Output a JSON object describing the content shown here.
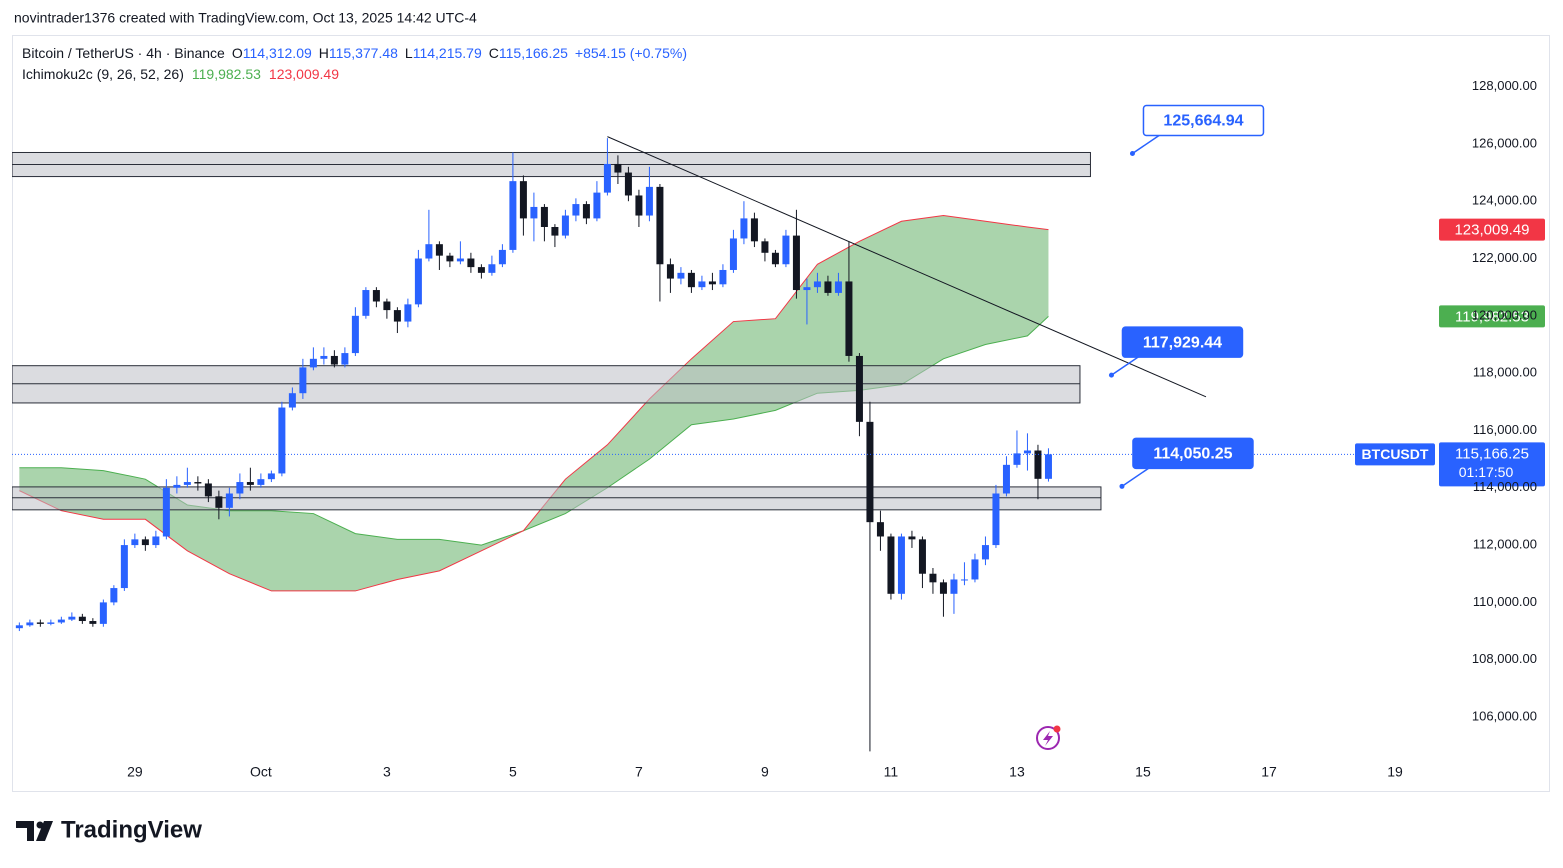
{
  "top_caption": "novintrader1376 created with TradingView.com, Oct 13, 2025 14:42 UTC-4",
  "brand": "TradingView",
  "chart_data": {
    "type": "candlestick",
    "symbol_title": "Bitcoin / TetherUS · 4h · Binance",
    "ohlc_legend": [
      {
        "key": "O",
        "value": "114,312.09"
      },
      {
        "key": "H",
        "value": "115,377.48"
      },
      {
        "key": "L",
        "value": "114,215.79"
      },
      {
        "key": "C",
        "value": "115,166.25"
      }
    ],
    "change": "+854.15 (+0.75%)",
    "indicator_title": "Ichimoku2c (9, 26, 52, 26)",
    "indicator_values": [
      "119,982.53",
      "123,009.49"
    ],
    "symbol_tag": "BTCUSDT",
    "countdown": "01:17:50",
    "up_color": "#2962ff",
    "down_color": "#131722",
    "open": [
      109100,
      109200,
      109300,
      109250,
      109300,
      109400,
      109500,
      109350,
      109250,
      110000,
      110500,
      112000,
      112200,
      112000,
      112300,
      114000,
      114100,
      114200,
      114150,
      113700,
      113300,
      113800,
      114200,
      114100,
      114300,
      114500,
      116800,
      117300,
      118200,
      118500,
      118600,
      118300,
      118700,
      120000,
      120900,
      120500,
      120200,
      119800,
      120400,
      122000,
      122500,
      122100,
      121900,
      122000,
      121700,
      121500,
      121800,
      122300,
      124700,
      123400,
      123800,
      123100,
      122800,
      123500,
      123900,
      123400,
      124300,
      125300,
      125000,
      124200,
      123500,
      124500,
      121800,
      121300,
      121500,
      121000,
      121200,
      121100,
      121600,
      122700,
      123400,
      122600,
      122200,
      121800,
      122800,
      120900,
      121000,
      121200,
      120800,
      121200,
      118600,
      116300,
      112800,
      112300,
      110300,
      112300,
      112200,
      111000,
      110700,
      110300,
      110800,
      110800,
      111500,
      112000,
      113800,
      114800,
      115200,
      115300,
      114312.09
    ],
    "high": [
      109300,
      109400,
      109400,
      109400,
      109500,
      109650,
      109600,
      109450,
      110100,
      110600,
      112200,
      112400,
      112300,
      112500,
      114300,
      114400,
      114700,
      114400,
      114300,
      113900,
      114000,
      114500,
      114700,
      114500,
      114600,
      117000,
      117500,
      118500,
      118900,
      118900,
      118800,
      118900,
      120300,
      121000,
      121000,
      120600,
      120300,
      120600,
      122300,
      123700,
      122600,
      122200,
      122600,
      122200,
      121800,
      122100,
      122500,
      125700,
      124900,
      124300,
      123900,
      123200,
      123700,
      124100,
      124000,
      124700,
      126200,
      125600,
      125200,
      124400,
      125200,
      124600,
      122000,
      121700,
      121600,
      121400,
      121500,
      121800,
      123000,
      124000,
      123600,
      122700,
      122300,
      123000,
      123700,
      121300,
      121500,
      121400,
      121500,
      122600,
      118700,
      117000,
      113200,
      112400,
      112400,
      112500,
      112300,
      111200,
      110800,
      111000,
      111400,
      111700,
      112300,
      114100,
      115100,
      116000,
      115900,
      115500,
      115377.48
    ],
    "low": [
      109000,
      109150,
      109150,
      109200,
      109250,
      109350,
      109250,
      109150,
      109150,
      109900,
      110400,
      111900,
      111800,
      111900,
      112200,
      113800,
      114000,
      113900,
      113500,
      112900,
      113000,
      113600,
      113900,
      114000,
      114200,
      114400,
      116700,
      117100,
      118100,
      118300,
      118200,
      118200,
      118600,
      119900,
      120300,
      119900,
      119400,
      119600,
      120300,
      121900,
      121600,
      121700,
      121800,
      121500,
      121300,
      121400,
      121700,
      122200,
      122800,
      122600,
      122600,
      122400,
      122700,
      123300,
      123200,
      123300,
      124200,
      124600,
      124000,
      123100,
      123300,
      120500,
      120800,
      121100,
      120800,
      120900,
      120900,
      121000,
      121500,
      122500,
      122400,
      121900,
      121700,
      121700,
      120600,
      119700,
      120800,
      120700,
      120700,
      118400,
      115800,
      104800,
      111800,
      110100,
      110100,
      111900,
      110500,
      110300,
      109500,
      109600,
      110600,
      110700,
      111300,
      111900,
      113700,
      114700,
      114600,
      113600,
      114215.79
    ],
    "close": [
      109200,
      109300,
      109250,
      109300,
      109400,
      109500,
      109350,
      109250,
      110000,
      110500,
      112000,
      112200,
      112000,
      112300,
      114000,
      114100,
      114200,
      114150,
      113700,
      113300,
      113800,
      114200,
      114100,
      114300,
      114500,
      116800,
      117300,
      118200,
      118500,
      118600,
      118300,
      118700,
      120000,
      120900,
      120500,
      120200,
      119800,
      120400,
      122000,
      122500,
      122100,
      121900,
      122000,
      121700,
      121500,
      121800,
      122300,
      124700,
      123400,
      123800,
      123100,
      122800,
      123500,
      123900,
      123400,
      124300,
      125300,
      125000,
      124200,
      123500,
      124500,
      121800,
      121300,
      121500,
      121000,
      121200,
      121100,
      121600,
      122700,
      123400,
      122600,
      122200,
      121800,
      122800,
      120900,
      121000,
      121200,
      120800,
      121200,
      118600,
      116300,
      112800,
      112300,
      110300,
      112300,
      112200,
      111000,
      110700,
      110300,
      110800,
      110800,
      111500,
      112000,
      113800,
      114800,
      115200,
      115300,
      114312.09,
      115166.25
    ],
    "cloud": {
      "x": [
        0,
        4,
        8,
        12,
        16,
        20,
        24,
        28,
        32,
        36,
        40,
        44,
        48,
        52,
        56,
        60,
        64,
        68,
        72,
        76,
        80,
        84,
        88,
        92,
        96,
        98
      ],
      "span_a": [
        114700,
        114700,
        114600,
        114300,
        113400,
        113200,
        113200,
        113100,
        112400,
        112200,
        112200,
        112000,
        112500,
        113100,
        114000,
        115000,
        116200,
        116400,
        116700,
        117300,
        117400,
        117600,
        118500,
        119000,
        119300,
        119982.53
      ],
      "span_b": [
        113900,
        113200,
        112900,
        112900,
        111800,
        111000,
        110400,
        110400,
        110400,
        110800,
        111100,
        111800,
        112500,
        114300,
        115500,
        117100,
        118500,
        119800,
        119900,
        121800,
        122600,
        123300,
        123500,
        123300,
        123100,
        123009.49
      ],
      "span_a_color": "#4caf50",
      "span_b_color": "#f23645",
      "fill": "rgba(67,160,71,0.45)"
    },
    "zones": [
      {
        "top": 125700,
        "mid": 125280,
        "bottom": 124860,
        "x_end": 102
      },
      {
        "top": 118260,
        "mid": 117630,
        "bottom": 116960,
        "x_end": 101
      },
      {
        "top": 114030,
        "mid": 113650,
        "bottom": 113230,
        "x_end": 103
      }
    ],
    "trendline": {
      "x": [
        56,
        113
      ],
      "y": [
        126254,
        117175
      ]
    },
    "annotations": [
      {
        "label": "125,664.94",
        "value": 125664.94,
        "x": 106,
        "filled": false
      },
      {
        "label": "117,929.44",
        "value": 117929.44,
        "x": 104,
        "filled": true
      },
      {
        "label": "114,050.25",
        "value": 114050.25,
        "x": 105,
        "filled": true
      }
    ],
    "xlim": [
      -0.7,
      135
    ],
    "ylim": [
      104500,
      129800
    ],
    "grid": false,
    "xticks": [
      {
        "value": 11,
        "label": "29"
      },
      {
        "value": 23,
        "label": "Oct"
      },
      {
        "value": 35,
        "label": "3"
      },
      {
        "value": 47,
        "label": "5"
      },
      {
        "value": 59,
        "label": "7"
      },
      {
        "value": 71,
        "label": "9"
      },
      {
        "value": 83,
        "label": "11"
      },
      {
        "value": 95,
        "label": "13"
      },
      {
        "value": 107,
        "label": "15"
      },
      {
        "value": 119,
        "label": "17"
      },
      {
        "value": 131,
        "label": "19"
      }
    ],
    "yticks": [
      {
        "value": 106000,
        "label": "106,000.00"
      },
      {
        "value": 108000,
        "label": "108,000.00"
      },
      {
        "value": 110000,
        "label": "110,000.00"
      },
      {
        "value": 112000,
        "label": "112,000.00"
      },
      {
        "value": 114000,
        "label": "114,000.00"
      },
      {
        "value": 116000,
        "label": "116,000.00"
      },
      {
        "value": 118000,
        "label": "118,000.00"
      },
      {
        "value": 120000,
        "label": "120,000.00"
      },
      {
        "value": 122000,
        "label": "122,000.00"
      },
      {
        "value": 124000,
        "label": "124,000.00"
      },
      {
        "value": 126000,
        "label": "126,000.00"
      },
      {
        "value": 128000,
        "label": "128,000.00"
      }
    ]
  }
}
